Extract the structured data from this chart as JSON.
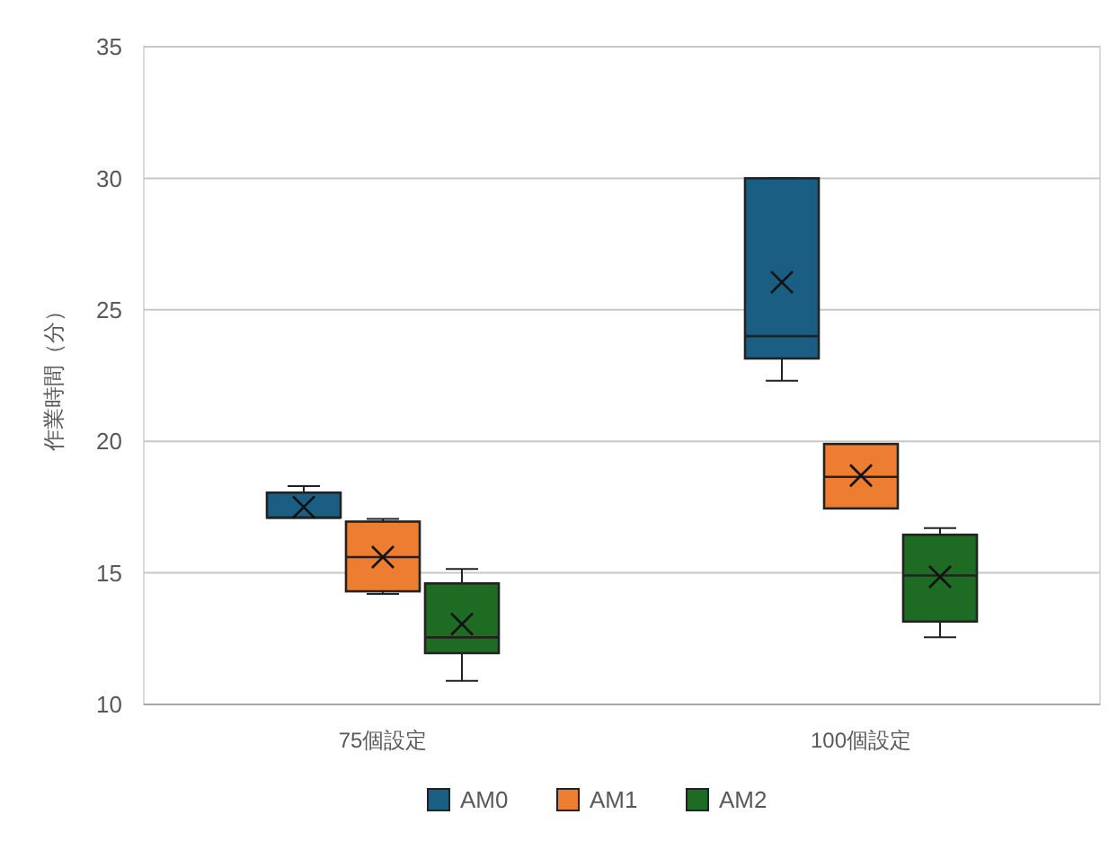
{
  "chart_data": {
    "type": "box",
    "ylabel": "作業時間（分）",
    "categories": [
      "75個設定",
      "100個設定"
    ],
    "series": [
      {
        "name": "AM0",
        "color": "#1b5e84",
        "boxes": [
          {
            "low": 17.1,
            "q1": 17.1,
            "median": 17.1,
            "q3": 18.05,
            "high": 18.3,
            "mean": 17.5
          },
          {
            "low": 22.3,
            "q1": 23.15,
            "median": 24.0,
            "q3": 30.0,
            "high": 30.0,
            "mean": 26.05
          }
        ]
      },
      {
        "name": "AM1",
        "color": "#ed7d31",
        "boxes": [
          {
            "low": 14.2,
            "q1": 14.3,
            "median": 15.6,
            "q3": 16.95,
            "high": 17.05,
            "mean": 15.6
          },
          {
            "low": 17.45,
            "q1": 17.45,
            "median": 18.65,
            "q3": 19.9,
            "high": 19.9,
            "mean": 18.7
          }
        ]
      },
      {
        "name": "AM2",
        "color": "#1e6b24",
        "boxes": [
          {
            "low": 10.9,
            "q1": 11.95,
            "median": 12.55,
            "q3": 14.6,
            "high": 15.15,
            "mean": 13.05
          },
          {
            "low": 12.55,
            "q1": 13.15,
            "median": 14.9,
            "q3": 16.45,
            "high": 16.7,
            "mean": 14.85
          }
        ]
      }
    ],
    "ylim": [
      10,
      35
    ],
    "yticks": [
      10,
      15,
      20,
      25,
      30,
      35
    ],
    "grid": "y",
    "legend": "bottom"
  }
}
